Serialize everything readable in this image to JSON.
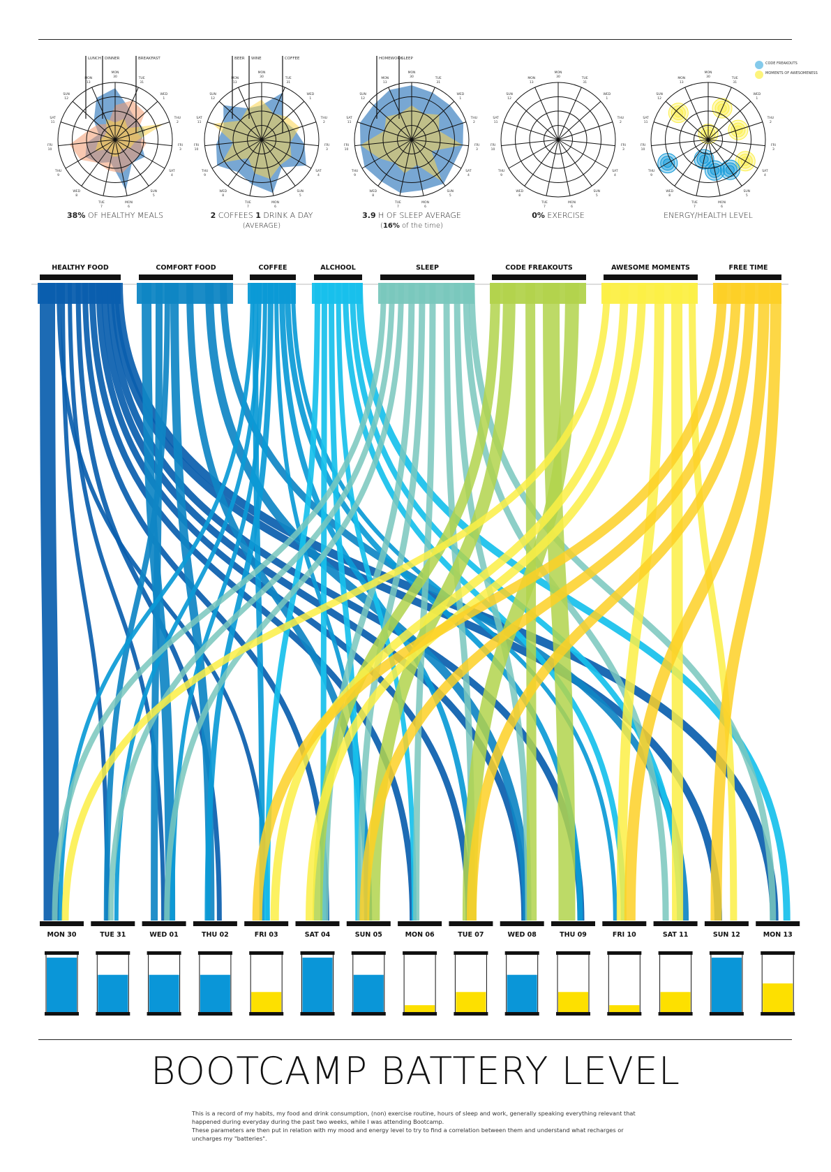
{
  "colors": {
    "healthy": "#0a5eae",
    "comfort": "#0f86c4",
    "coffee": "#0b9ad6",
    "alcohol": "#17c0ec",
    "sleep": "#79c7bd",
    "freak": "#b2d34c",
    "awesome": "#fcef45",
    "free": "#fdd026",
    "battery_high": "#0a96d8",
    "battery_low": "#fde000"
  },
  "radars": [
    {
      "stat_bold": "38%",
      "stat_rest": " OF HEALTHY MEALS",
      "stat_line2": "",
      "callouts": [
        "LUNCH",
        "DINNER",
        "BREAKFAST"
      ],
      "days": [
        "MON 30",
        "TUE 31",
        "WED 1",
        "THU 2",
        "FRI 3",
        "SAT 4",
        "SUN 5",
        "MON 6",
        "TUE 7",
        "WED 8",
        "THU 9",
        "FRI 10",
        "SAT 11",
        "SUN 12",
        "MON 13"
      ],
      "series": [
        {
          "name": "Lunch",
          "color": "#0a5eae",
          "values": [
            0.9,
            0.6,
            0.5,
            0.55,
            0.45,
            0.6,
            0.5,
            0.9,
            0.4,
            0.5,
            0.6,
            0.5,
            0.3,
            0.5,
            0.8
          ]
        },
        {
          "name": "Dinner",
          "color": "#f29a6f",
          "values": [
            0.6,
            0.75,
            0.7,
            0.4,
            0.55,
            0.5,
            0.5,
            0.6,
            0.55,
            0.5,
            0.7,
            0.8,
            0.5,
            0.4,
            0.3
          ]
        },
        {
          "name": "Breakfast",
          "color": "#fcd34d",
          "values": [
            0.3,
            0.4,
            0.3,
            0.9,
            0.35,
            0.3,
            0.2,
            0.3,
            0.3,
            0.2,
            0.4,
            0.3,
            0.2,
            0.2,
            0.4
          ]
        }
      ]
    },
    {
      "stat_bold": "2",
      "stat_rest": " COFFEES ",
      "stat_bold2": "1",
      "stat_rest2": " DRINK A DAY",
      "stat_line2": "(AVERAGE)",
      "callouts": [
        "BEER",
        "WINE",
        "COFFEE"
      ],
      "days": [
        "MON 30",
        "TUE 31",
        "WED 1",
        "THU 2",
        "FRI 3",
        "SAT 4",
        "SUN 5",
        "MON 6",
        "TUE 7",
        "WED 8",
        "THU 9",
        "FRI 10",
        "SAT 11",
        "SUN 12",
        "MON 13"
      ],
      "series": [
        {
          "name": "Beer/Wine",
          "color": "#0a5eae",
          "values": [
            0.6,
            0.9,
            0.5,
            0.6,
            0.75,
            0.9,
            0.6,
            0.95,
            0.8,
            0.7,
            0.9,
            0.8,
            0.7,
            0.9,
            0.6
          ]
        },
        {
          "name": "Coffee",
          "color": "#fcd34d",
          "values": [
            0.7,
            0.5,
            0.6,
            0.7,
            0.5,
            0.6,
            0.55,
            0.7,
            0.6,
            0.4,
            0.8,
            0.5,
            0.9,
            0.5,
            0.6
          ]
        }
      ]
    },
    {
      "stat_bold": "3.9",
      "stat_rest": " H OF SLEEP AVERAGE",
      "stat_line2_pre": "(",
      "stat_line2_bold": "16%",
      "stat_line2": " of the time)",
      "callouts": [
        "HOMEWORK",
        "SLEEP"
      ],
      "days": [
        "MON 30",
        "TUE 31",
        "WED 1",
        "THU 2",
        "FRI 3",
        "SAT 4",
        "SUN 5",
        "MON 6",
        "TUE 7",
        "WED 8",
        "THU 9",
        "FRI 10",
        "SAT 11",
        "SUN 12",
        "MON 13"
      ],
      "series": [
        {
          "name": "Homework",
          "color": "#0a5eae",
          "values": [
            0.95,
            0.9,
            0.9,
            0.95,
            0.9,
            0.85,
            0.95,
            0.9,
            0.95,
            0.9,
            0.95,
            0.9,
            0.95,
            0.9,
            0.95
          ]
        },
        {
          "name": "Sleep",
          "color": "#fcd34d",
          "values": [
            0.6,
            0.5,
            0.65,
            0.5,
            0.9,
            0.4,
            0.9,
            0.45,
            0.6,
            0.5,
            0.65,
            0.9,
            0.5,
            0.6,
            0.5
          ]
        }
      ]
    },
    {
      "stat_bold": "0%",
      "stat_rest": " EXERCISE",
      "stat_line2": "",
      "callouts": [],
      "days": [
        "MON 30",
        "TUE 31",
        "WED 1",
        "THU 2",
        "FRI 3",
        "SAT 4",
        "SUN 5",
        "MON 6",
        "TUE 7",
        "WED 8",
        "THU 9",
        "FRI 10",
        "SAT 11",
        "SUN 12",
        "MON 13"
      ],
      "series": []
    },
    {
      "stat_bold": "",
      "stat_rest": "ENERGY/HEALTH LEVEL",
      "stat_line2": "",
      "callouts": [],
      "legend": [
        "CODE FREAKOUTS",
        "MOMENTS OF AWESOMENESS"
      ],
      "days": [
        "MON 30",
        "TUE 31",
        "WED 1",
        "THU 2",
        "FRI 3",
        "SAT 4",
        "SUN 5",
        "MON 6",
        "TUE 7",
        "WED 8",
        "THU 9",
        "FRI 10",
        "SAT 11",
        "SUN 12",
        "MON 13"
      ],
      "series": []
    }
  ],
  "categories": [
    {
      "key": "healthy",
      "label": "HEALTHY FOOD"
    },
    {
      "key": "comfort",
      "label": "COMFORT FOOD"
    },
    {
      "key": "coffee",
      "label": "COFFEE"
    },
    {
      "key": "alcohol",
      "label": "ALCHOOL"
    },
    {
      "key": "sleep",
      "label": "SLEEP"
    },
    {
      "key": "freak",
      "label": "CODE FREAKOUTS"
    },
    {
      "key": "awesome",
      "label": "AWESOME MOMENTS"
    },
    {
      "key": "free",
      "label": "FREE TIME"
    }
  ],
  "days": [
    "MON 30",
    "TUE 31",
    "WED 01",
    "THU 02",
    "FRI 03",
    "SAT 04",
    "SUN 05",
    "MON 06",
    "TUE 07",
    "WED 08",
    "THU 09",
    "FRI 10",
    "SAT 11",
    "SUN 12",
    "MON 13"
  ],
  "battery": [
    0.95,
    0.65,
    0.65,
    0.65,
    0.35,
    0.95,
    0.65,
    0.12,
    0.35,
    0.65,
    0.35,
    0.12,
    0.35,
    0.95,
    0.5
  ],
  "battery_color": [
    "high",
    "high",
    "high",
    "high",
    "low",
    "high",
    "high",
    "low",
    "low",
    "high",
    "low",
    "low",
    "low",
    "high",
    "low"
  ],
  "title": "BOOTCAMP BATTERY LEVEL",
  "description": [
    "This is a record of my habits, my food and drink consumption, (non) exercise routine, hours of sleep and work, generally speaking everything relevant that happened during everyday during the past two weeks, while I was attending Bootcamp.",
    "These parameters are then put in relation with my mood and energy level to try to find a correlation between them and understand what recharges or uncharges my \"batteries\"."
  ]
}
